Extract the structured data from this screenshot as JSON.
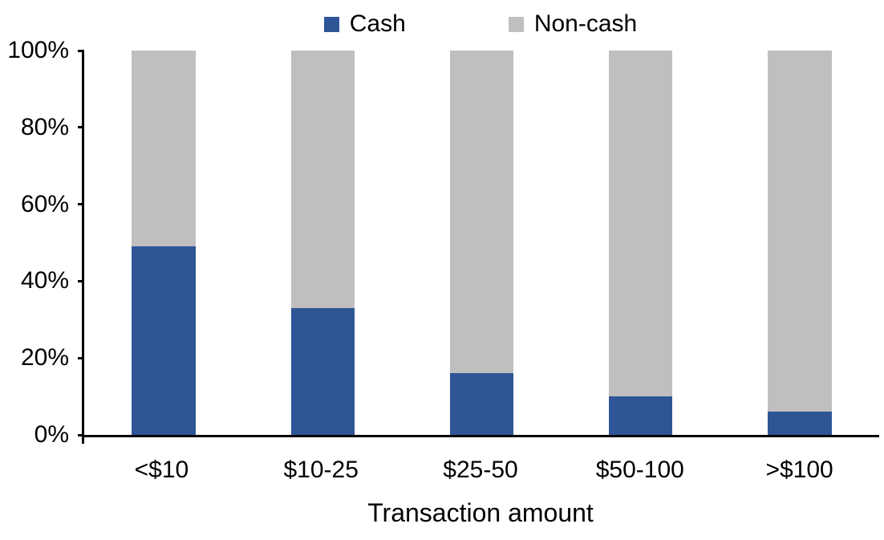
{
  "chart_data": {
    "type": "bar",
    "stacked": true,
    "orientation": "vertical",
    "xlabel": "Transaction amount",
    "categories": [
      "<$10",
      "$10-25",
      "$25-50",
      "$50-100",
      ">$100"
    ],
    "series": [
      {
        "name": "Cash",
        "color": "#2F5596",
        "values": [
          49,
          33,
          16,
          10,
          6
        ]
      },
      {
        "name": "Non-cash",
        "color": "#BFBFBF",
        "values": [
          51,
          67,
          84,
          90,
          94
        ]
      }
    ],
    "ylim": [
      0,
      100
    ],
    "yticks": [
      "0%",
      "20%",
      "40%",
      "60%",
      "80%",
      "100%"
    ],
    "legend": {
      "position": "top",
      "entries": [
        "Cash",
        "Non-cash"
      ]
    },
    "grid": false,
    "axis_color": "#000000",
    "text_color": "#000000",
    "background_color": "#FFFFFF"
  }
}
